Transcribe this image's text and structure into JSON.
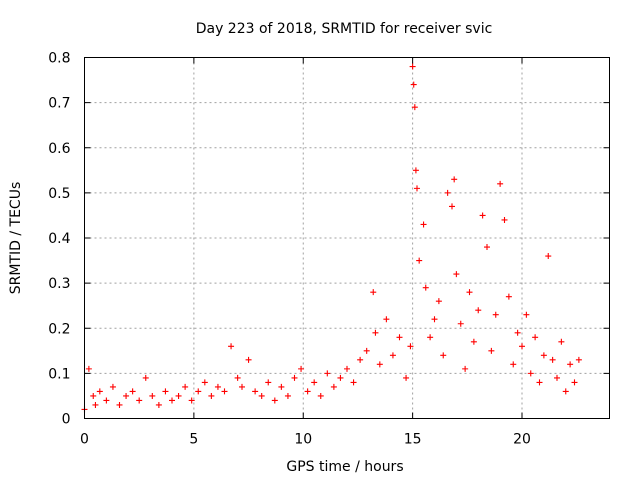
{
  "chart_data": {
    "type": "scatter",
    "title": "Day 223 of 2018, SRMTID for receiver svic",
    "xlabel": "GPS time / hours",
    "ylabel": "SRMTID / TECUs",
    "xlim": [
      0,
      24
    ],
    "ylim": [
      0,
      0.8
    ],
    "x_ticks": [
      0,
      5,
      10,
      15,
      20
    ],
    "x_tick_labels": [
      "0",
      "5",
      "10",
      "15",
      "20"
    ],
    "y_ticks": [
      0,
      0.1,
      0.2,
      0.3,
      0.4,
      0.5,
      0.6,
      0.7,
      0.8
    ],
    "y_tick_labels": [
      "0",
      "0.1",
      "0.2",
      "0.3",
      "0.4",
      "0.5",
      "0.6",
      "0.7",
      "0.8"
    ],
    "grid": true,
    "marker": "+",
    "color": "#ff0000",
    "series": [
      {
        "name": "SRMTID",
        "x": [
          0.0,
          0.2,
          0.4,
          0.5,
          0.7,
          1.0,
          1.3,
          1.6,
          1.9,
          2.2,
          2.5,
          2.8,
          3.1,
          3.4,
          3.7,
          4.0,
          4.3,
          4.6,
          4.9,
          5.2,
          5.5,
          5.8,
          6.1,
          6.4,
          6.7,
          7.0,
          7.2,
          7.5,
          7.8,
          8.1,
          8.4,
          8.7,
          9.0,
          9.3,
          9.6,
          9.9,
          10.2,
          10.5,
          10.8,
          11.1,
          11.4,
          11.7,
          12.0,
          12.3,
          12.6,
          12.9,
          13.2,
          13.3,
          13.5,
          13.8,
          14.1,
          14.4,
          14.7,
          14.9,
          15.0,
          15.05,
          15.1,
          15.15,
          15.2,
          15.3,
          15.5,
          15.6,
          15.8,
          16.0,
          16.2,
          16.4,
          16.6,
          16.8,
          16.9,
          17.0,
          17.2,
          17.4,
          17.6,
          17.8,
          18.0,
          18.2,
          18.4,
          18.6,
          18.8,
          19.0,
          19.2,
          19.4,
          19.6,
          19.8,
          20.0,
          20.2,
          20.4,
          20.6,
          20.8,
          21.0,
          21.2,
          21.4,
          21.6,
          21.8,
          22.0,
          22.2,
          22.4,
          22.6
        ],
        "y": [
          0.02,
          0.11,
          0.05,
          0.03,
          0.06,
          0.04,
          0.07,
          0.03,
          0.05,
          0.06,
          0.04,
          0.09,
          0.05,
          0.03,
          0.06,
          0.04,
          0.05,
          0.07,
          0.04,
          0.06,
          0.08,
          0.05,
          0.07,
          0.06,
          0.16,
          0.09,
          0.07,
          0.13,
          0.06,
          0.05,
          0.08,
          0.04,
          0.07,
          0.05,
          0.09,
          0.11,
          0.06,
          0.08,
          0.05,
          0.1,
          0.07,
          0.09,
          0.11,
          0.08,
          0.13,
          0.15,
          0.28,
          0.19,
          0.12,
          0.22,
          0.14,
          0.18,
          0.09,
          0.16,
          0.78,
          0.74,
          0.69,
          0.55,
          0.51,
          0.35,
          0.43,
          0.29,
          0.18,
          0.22,
          0.26,
          0.14,
          0.5,
          0.47,
          0.53,
          0.32,
          0.21,
          0.11,
          0.28,
          0.17,
          0.24,
          0.45,
          0.38,
          0.15,
          0.23,
          0.52,
          0.44,
          0.27,
          0.12,
          0.19,
          0.16,
          0.23,
          0.1,
          0.18,
          0.08,
          0.14,
          0.36,
          0.13,
          0.09,
          0.17,
          0.06,
          0.12,
          0.08,
          0.13
        ]
      }
    ]
  }
}
